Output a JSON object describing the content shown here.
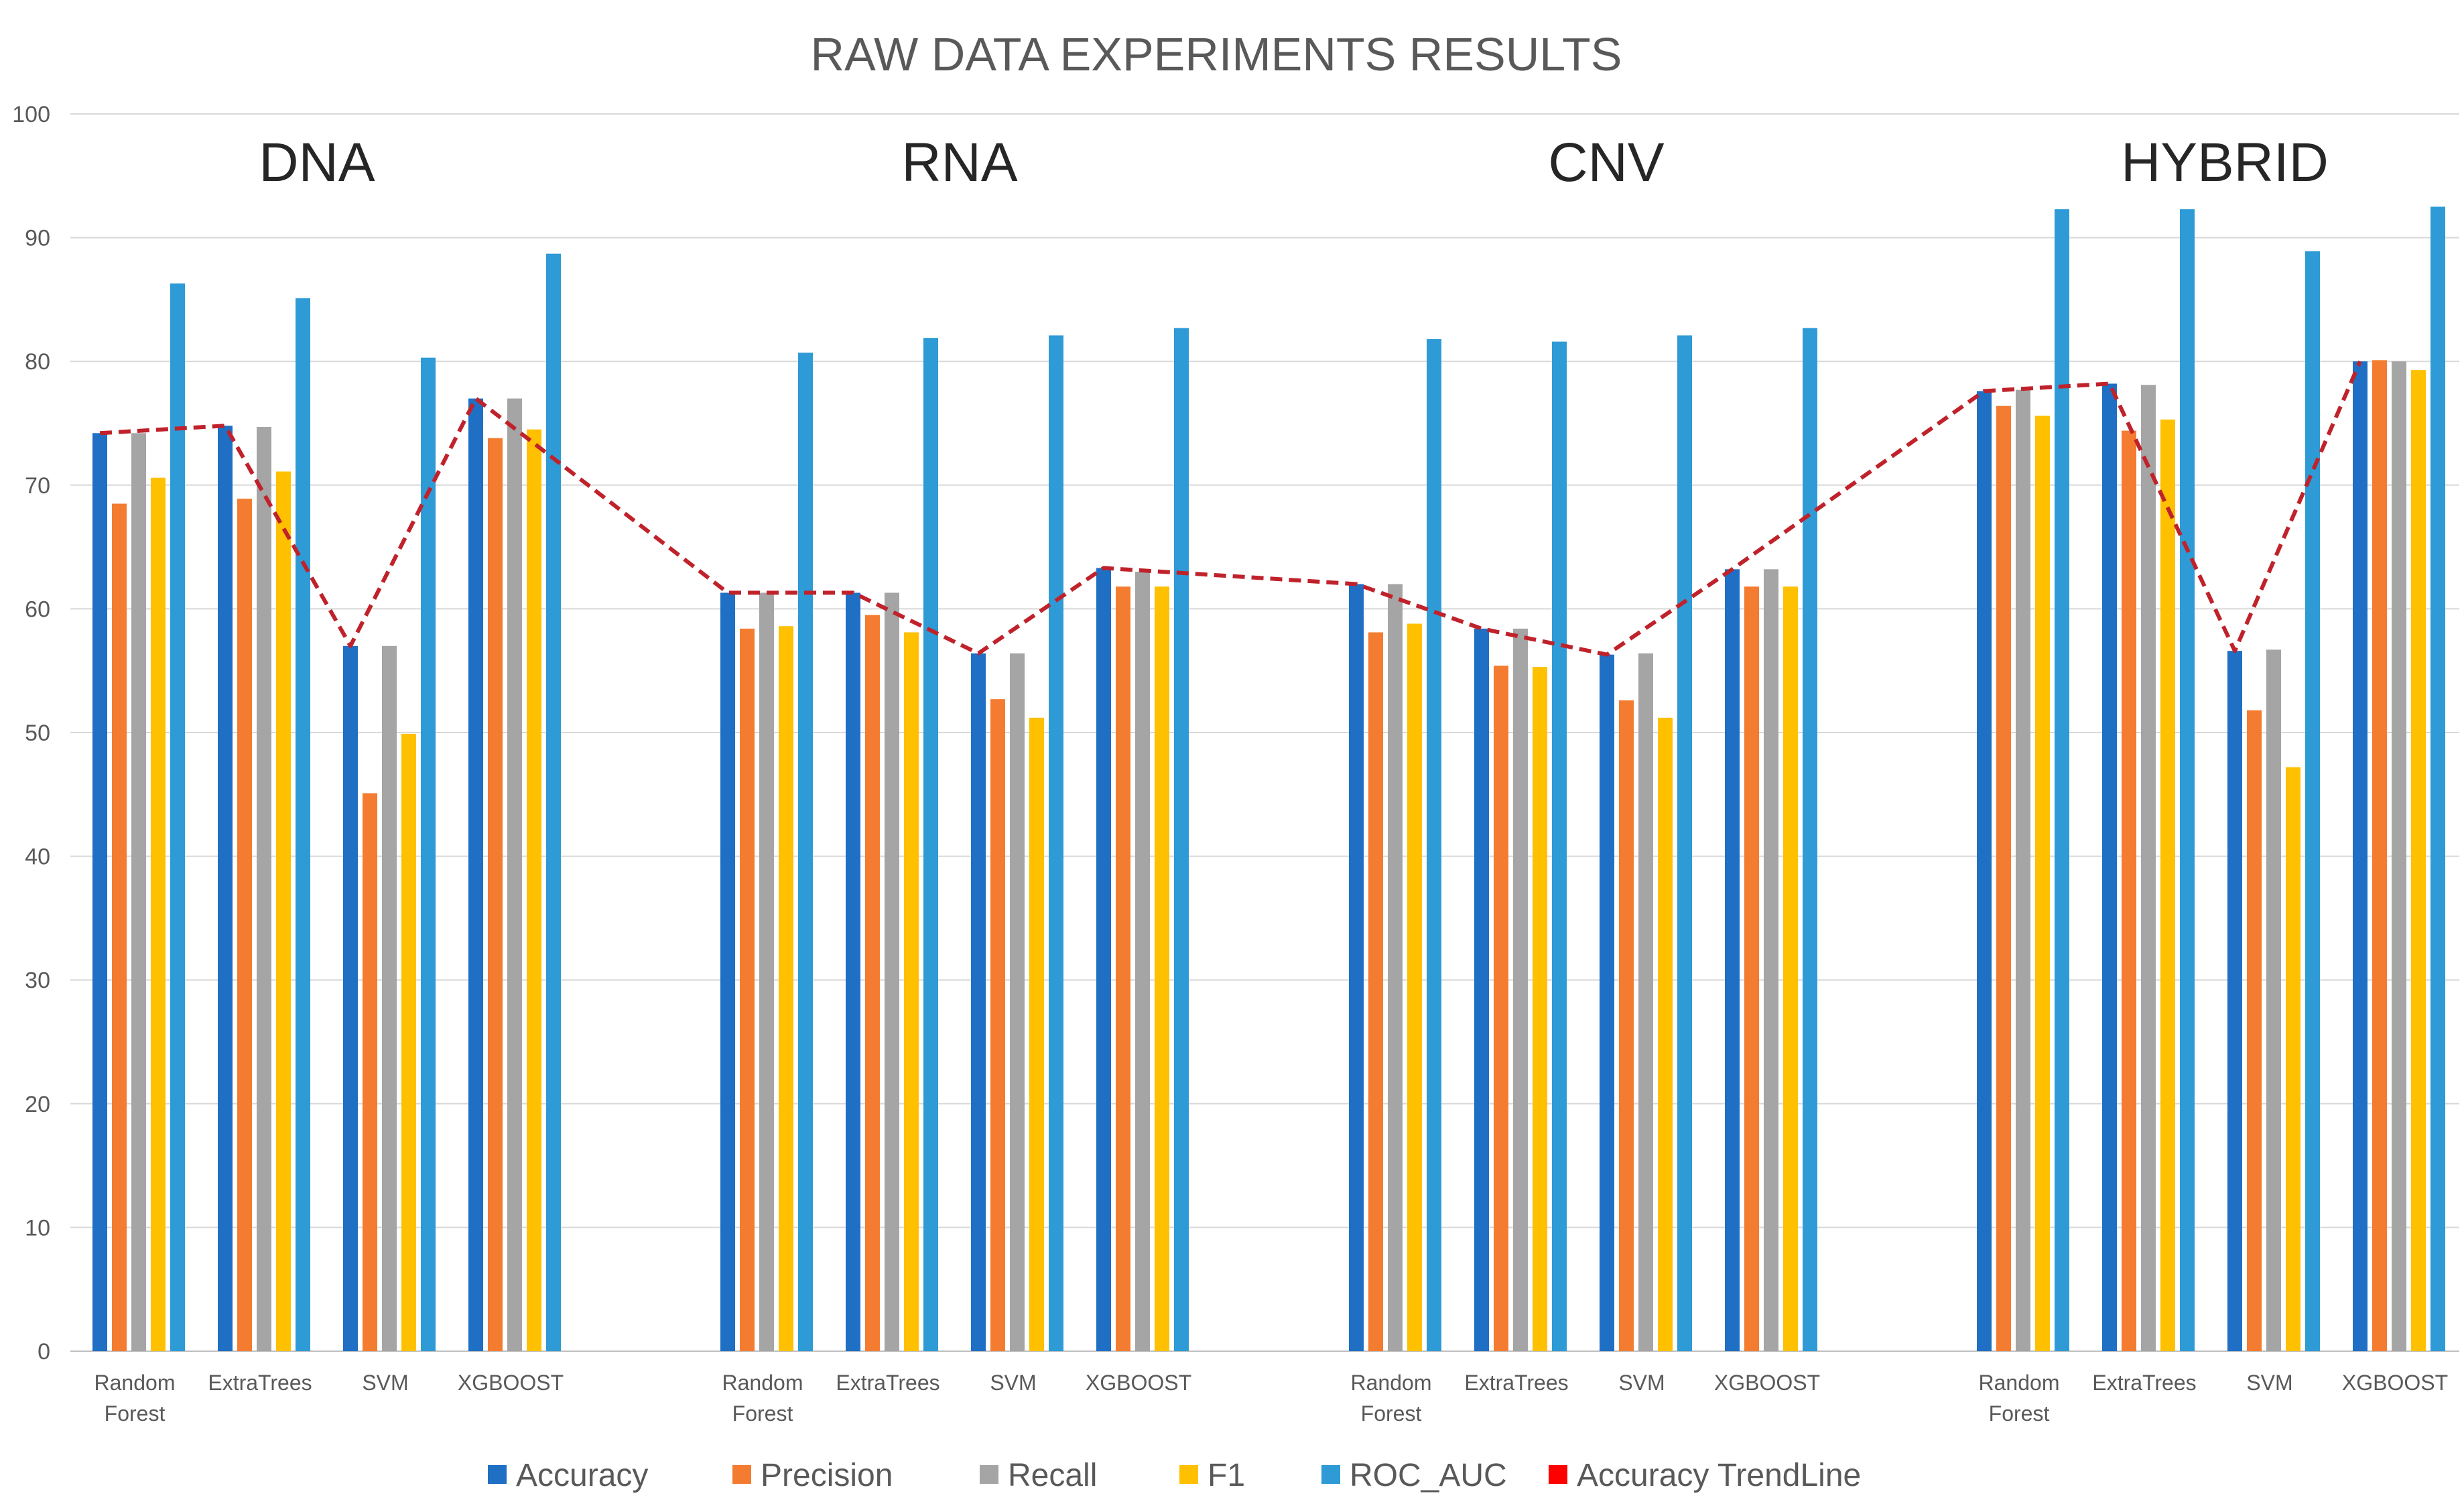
{
  "chart_data": {
    "type": "bar",
    "title": "RAW DATA EXPERIMENTS RESULTS",
    "xlabel": "",
    "ylabel": "",
    "ylim": [
      0,
      100
    ],
    "yticks": [
      0,
      10,
      20,
      30,
      40,
      50,
      60,
      70,
      80,
      90,
      100
    ],
    "grid": true,
    "legend_position": "bottom",
    "groups": [
      "DNA",
      "RNA",
      "CNV",
      "HYBRID"
    ],
    "categories": [
      "Random Forest",
      "ExtraTrees",
      "SVM",
      "XGBOOST"
    ],
    "category_label_lines": [
      [
        "Random",
        "Forest"
      ],
      [
        "ExtraTrees"
      ],
      [
        "SVM"
      ],
      [
        "XGBOOST"
      ]
    ],
    "series": [
      {
        "name": "Accuracy",
        "color": "#1F6FC5",
        "values": [
          [
            74.2,
            74.8,
            57.0,
            77.0
          ],
          [
            61.3,
            61.3,
            56.4,
            63.3
          ],
          [
            62.0,
            58.4,
            56.3,
            63.2
          ],
          [
            77.6,
            78.2,
            56.6,
            80.0
          ]
        ]
      },
      {
        "name": "Precision",
        "color": "#F47C30",
        "values": [
          [
            68.5,
            68.9,
            45.1,
            73.8
          ],
          [
            58.4,
            59.5,
            52.7,
            61.8
          ],
          [
            58.1,
            55.4,
            52.6,
            61.8
          ],
          [
            76.4,
            74.4,
            51.8,
            80.1
          ]
        ]
      },
      {
        "name": "Recall",
        "color": "#A5A5A5",
        "values": [
          [
            74.2,
            74.7,
            57.0,
            77.0
          ],
          [
            61.3,
            61.3,
            56.4,
            63.0
          ],
          [
            62.0,
            58.4,
            56.4,
            63.2
          ],
          [
            77.7,
            78.1,
            56.7,
            80.0
          ]
        ]
      },
      {
        "name": "F1",
        "color": "#FFC000",
        "values": [
          [
            70.6,
            71.1,
            49.9,
            74.5
          ],
          [
            58.6,
            58.1,
            51.2,
            61.8
          ],
          [
            58.8,
            55.3,
            51.2,
            61.8
          ],
          [
            75.6,
            75.3,
            47.2,
            79.3
          ]
        ]
      },
      {
        "name": "ROC_AUC",
        "color": "#2E9BD6",
        "values": [
          [
            86.3,
            85.1,
            80.3,
            88.7
          ],
          [
            80.7,
            81.9,
            82.1,
            82.7
          ],
          [
            81.8,
            81.6,
            82.1,
            82.7
          ],
          [
            92.3,
            92.3,
            88.9,
            92.5
          ]
        ]
      }
    ],
    "trendline": {
      "name": "Accuracy TrendLine",
      "color": "#C0222B",
      "based_on": "Accuracy",
      "legend_color": "#FF0000"
    }
  }
}
